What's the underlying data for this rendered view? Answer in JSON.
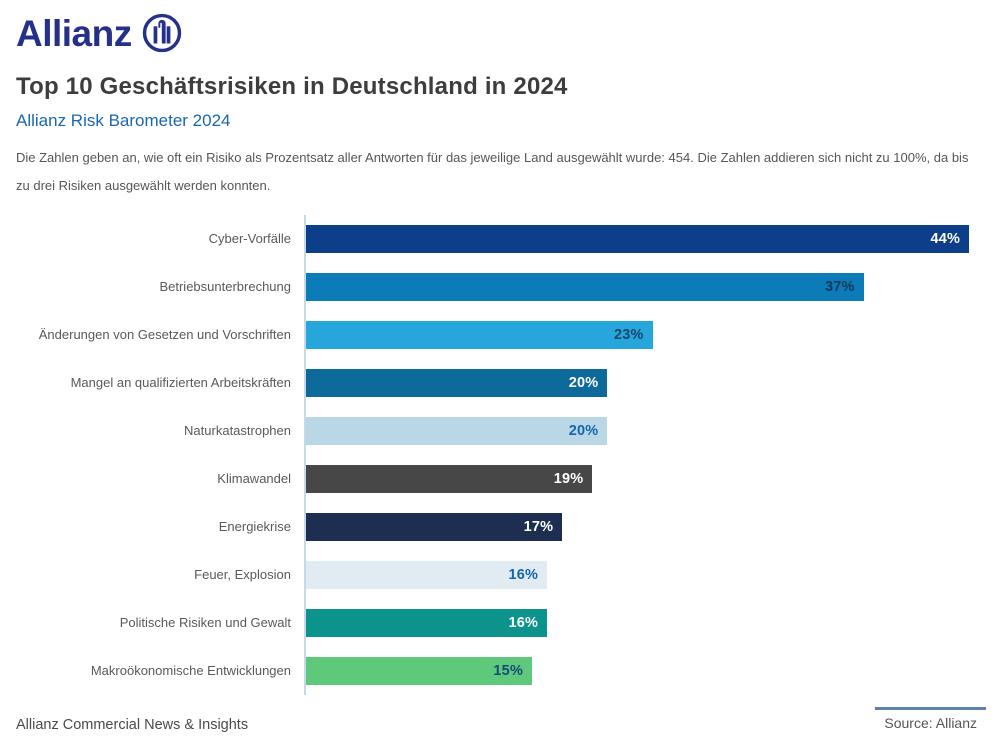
{
  "header": {
    "logo_text": "Allianz",
    "title": "Top 10 Geschäftsrisiken in Deutschland in 2024",
    "subtitle": "Allianz Risk Barometer 2024",
    "description": "Die Zahlen geben an, wie oft ein Risiko als Prozentsatz aller Antworten für das jeweilige Land ausgewählt wurde: 454. Die Zahlen addieren sich nicht zu 100%, da bis zu drei Risiken ausgewählt werden konnten."
  },
  "chart_data": {
    "type": "bar",
    "orientation": "horizontal",
    "title": "Top 10 Geschäftsrisiken in Deutschland in 2024",
    "unit": "%",
    "xlim": [
      0,
      46
    ],
    "grid": false,
    "axis_color": "#c5d9e6",
    "categories": [
      "Cyber-Vorfälle",
      "Betriebsunterbrechung",
      "Änderungen von Gesetzen und Vorschriften",
      "Mangel an qualifizierten Arbeitskräften",
      "Naturkatastrophen",
      "Klimawandel",
      "Energiekrise",
      "Feuer, Explosion",
      "Politische Risiken und Gewalt",
      "Makroökonomische Entwicklungen"
    ],
    "values": [
      44,
      37,
      23,
      20,
      20,
      19,
      17,
      16,
      16,
      15
    ],
    "value_labels": [
      "44%",
      "37%",
      "23%",
      "20%",
      "20%",
      "19%",
      "17%",
      "16%",
      "16%",
      "15%"
    ],
    "bar_colors": [
      "#0d3e8a",
      "#0b7cb8",
      "#27a6dc",
      "#0e6a9b",
      "#b9d7e5",
      "#474747",
      "#1d2e50",
      "#e1ecf2",
      "#0b938c",
      "#5ec97a"
    ],
    "value_label_colors": [
      "#ffffff",
      "#16355f",
      "#16466f",
      "#ffffff",
      "#1565ae",
      "#ffffff",
      "#ffffff",
      "#1565ae",
      "#ffffff",
      "#174a7c"
    ]
  },
  "footer": {
    "left_text": "Allianz Commercial News & Insights",
    "source_text": "Source: Allianz"
  },
  "colors": {
    "brand_blue": "#253189",
    "title_gray": "#3d3d3d",
    "subtitle_blue": "#1a67b0",
    "source_line_blue": "#5b82ab"
  }
}
